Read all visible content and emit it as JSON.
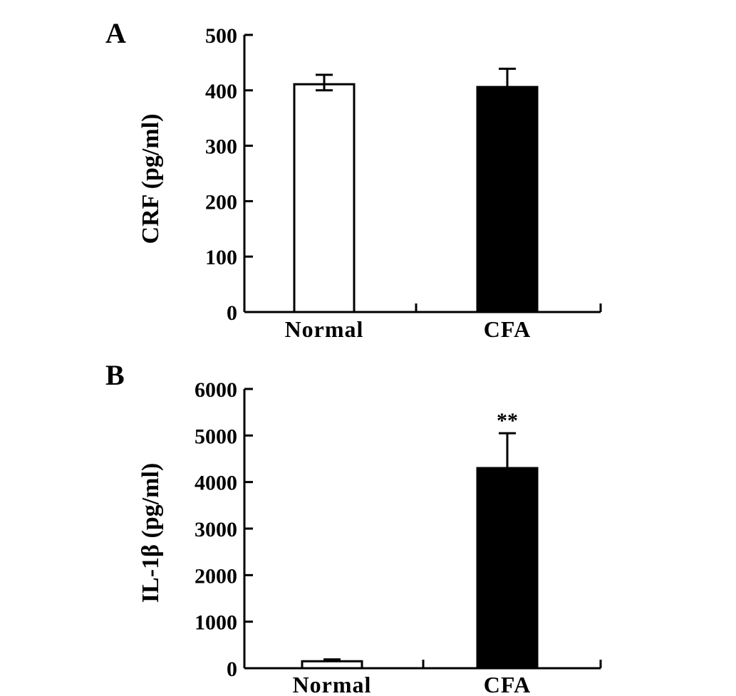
{
  "chart_data": [
    {
      "panel_label": "A",
      "type": "bar",
      "categories": [
        "Normal",
        "CFA"
      ],
      "values": [
        411,
        406
      ],
      "error_upper": [
        428,
        439
      ],
      "error_lower": [
        400,
        null
      ],
      "bar_fills": [
        "#ffffff",
        "#000000"
      ],
      "annotations": [
        "",
        ""
      ],
      "ylabel": "CRF (pg/ml)",
      "xlabel": "",
      "ylim": [
        0,
        500
      ],
      "yticks": [
        0,
        100,
        200,
        300,
        400,
        500
      ],
      "grid": false
    },
    {
      "panel_label": "B",
      "type": "bar",
      "categories": [
        "Normal",
        "CFA"
      ],
      "values": [
        150,
        4300
      ],
      "error_upper": [
        190,
        5050
      ],
      "error_lower": [
        null,
        null
      ],
      "bar_fills": [
        "#ffffff",
        "#000000"
      ],
      "annotations": [
        "",
        "**"
      ],
      "ylabel": "IL-1β (pg/ml)",
      "xlabel": "",
      "ylim": [
        0,
        6000
      ],
      "yticks": [
        0,
        1000,
        2000,
        3000,
        4000,
        5000,
        6000
      ],
      "grid": false
    }
  ]
}
